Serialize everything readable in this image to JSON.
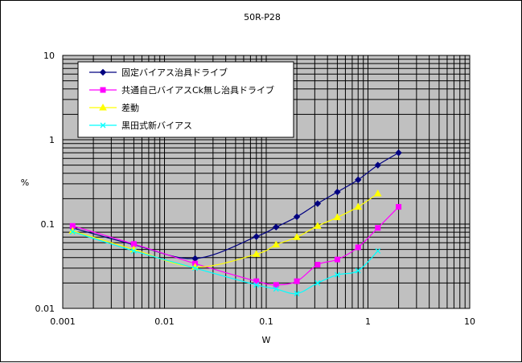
{
  "chart_data": {
    "type": "line",
    "title": "50R-P28",
    "xlabel": "W",
    "ylabel": "%",
    "x_scale": "log",
    "y_scale": "log",
    "xlim": [
      0.001,
      10
    ],
    "ylim": [
      0.01,
      10
    ],
    "x_ticks": [
      "0.001",
      "0.01",
      "0.1",
      "1",
      "10"
    ],
    "y_ticks": [
      "10",
      "1",
      "0.1",
      "0.01"
    ],
    "grid": true,
    "legend_position": "top-left",
    "plot_background": "#c0c0c0",
    "series": [
      {
        "name": "固定バイアス治具ドライブ",
        "color": "#000080",
        "marker": "diamond",
        "x": [
          0.00125,
          0.005,
          0.02,
          0.08,
          0.125,
          0.2,
          0.32,
          0.5,
          0.8,
          1.25,
          2
        ],
        "y": [
          0.09,
          0.057,
          0.039,
          0.071,
          0.092,
          0.122,
          0.175,
          0.24,
          0.335,
          0.5,
          0.7
        ]
      },
      {
        "name": "共通自己バイアスCk無し治具ドライブ",
        "color": "#ff00ff",
        "marker": "square",
        "x": [
          0.00125,
          0.005,
          0.02,
          0.08,
          0.125,
          0.2,
          0.32,
          0.5,
          0.8,
          1.25,
          2
        ],
        "y": [
          0.095,
          0.058,
          0.034,
          0.021,
          0.019,
          0.021,
          0.033,
          0.038,
          0.053,
          0.09,
          0.16
        ]
      },
      {
        "name": "差動",
        "color": "#ffff00",
        "marker": "triangle",
        "x": [
          0.00125,
          0.005,
          0.02,
          0.08,
          0.125,
          0.2,
          0.32,
          0.5,
          0.8,
          1.25
        ],
        "y": [
          0.083,
          0.05,
          0.031,
          0.044,
          0.057,
          0.07,
          0.095,
          0.12,
          0.16,
          0.23
        ]
      },
      {
        "name": "黒田式新バイアス",
        "color": "#00ffff",
        "marker": "x",
        "x": [
          0.00125,
          0.005,
          0.02,
          0.08,
          0.125,
          0.2,
          0.32,
          0.5,
          0.8,
          1.25
        ],
        "y": [
          0.081,
          0.048,
          0.03,
          0.019,
          0.017,
          0.015,
          0.02,
          0.025,
          0.028,
          0.048
        ]
      }
    ]
  }
}
